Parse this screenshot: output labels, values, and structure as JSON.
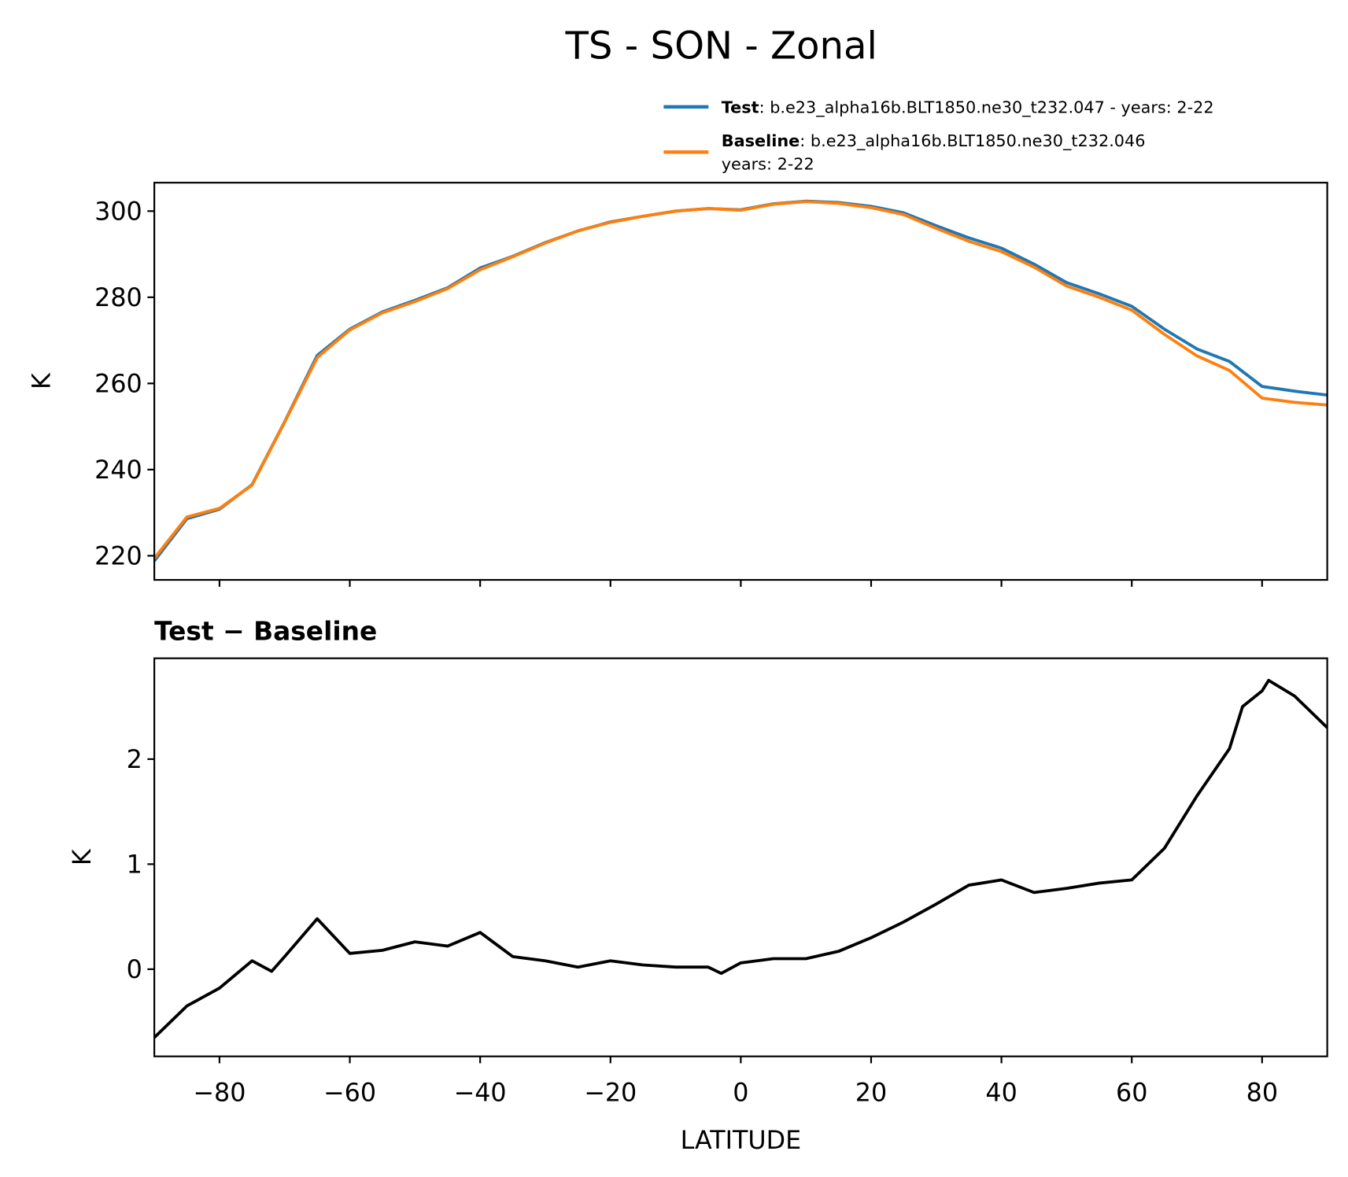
{
  "chart_data": [
    {
      "type": "line",
      "title": "TS - SON - Zonal",
      "y_label": "K",
      "x": [
        -90,
        -85,
        -80,
        -75,
        -70,
        -65,
        -60,
        -55,
        -50,
        -45,
        -40,
        -35,
        -30,
        -25,
        -20,
        -15,
        -10,
        -5,
        0,
        5,
        10,
        15,
        20,
        25,
        30,
        35,
        40,
        45,
        50,
        55,
        60,
        65,
        70,
        75,
        80,
        85,
        90
      ],
      "series": [
        {
          "name": "Test",
          "legend_text": [
            ": b.e23_alpha16b.BLT1850.ne30_t232.047 - years: 2-22"
          ],
          "color": "#1f77b4",
          "values": [
            218.8,
            228.6,
            230.8,
            236.5,
            251.1,
            266.5,
            272.6,
            276.6,
            279.3,
            282.2,
            286.8,
            289.5,
            292.7,
            295.4,
            297.5,
            298.8,
            300,
            300.6,
            300.3,
            301.7,
            302.3,
            302,
            301.1,
            299.6,
            296.6,
            293.8,
            291.4,
            287.7,
            283.4,
            280.8,
            277.9,
            272.6,
            268,
            265.1,
            259.3,
            258.2,
            257.3
          ]
        },
        {
          "name": "Baseline",
          "legend_text": [
            ": b.e23_alpha16b.BLT1850.ne30_t232.046",
            "years: 2-22"
          ],
          "color": "#ff7f0e",
          "values": [
            219.4,
            229,
            231,
            236.4,
            251,
            266,
            272.4,
            276.4,
            279,
            282,
            286.4,
            289.4,
            292.6,
            295.4,
            297.4,
            298.8,
            300,
            300.6,
            300.2,
            301.6,
            302.2,
            301.8,
            300.8,
            299.2,
            296,
            293,
            290.6,
            287,
            282.6,
            280,
            277,
            271.4,
            266.4,
            263,
            256.6,
            255.6,
            255
          ]
        }
      ],
      "xlim": [
        -90,
        90
      ],
      "xticks": [
        -80,
        -60,
        -40,
        -20,
        0,
        20,
        40,
        60,
        80
      ],
      "xticklabels": false,
      "ylim": [
        214.4,
        306.6
      ],
      "yticks": [
        220,
        240,
        260,
        280,
        300
      ]
    },
    {
      "type": "line",
      "title": "Test − Baseline",
      "y_label": "K",
      "x_label": "LATITUDE",
      "x": [
        -90,
        -85,
        -80,
        -75,
        -72,
        -70,
        -65,
        -60,
        -55,
        -50,
        -45,
        -40,
        -35,
        -30,
        -25,
        -20,
        -15,
        -10,
        -5,
        -3,
        0,
        5,
        10,
        15,
        20,
        25,
        30,
        35,
        40,
        45,
        50,
        55,
        60,
        65,
        70,
        75,
        77,
        80,
        81,
        85,
        90
      ],
      "values": [
        -0.65,
        -0.35,
        -0.18,
        0.08,
        -0.02,
        0.12,
        0.48,
        0.15,
        0.18,
        0.26,
        0.22,
        0.35,
        0.12,
        0.08,
        0.02,
        0.08,
        0.04,
        0.02,
        0.02,
        -0.04,
        0.06,
        0.1,
        0.1,
        0.17,
        0.3,
        0.45,
        0.62,
        0.8,
        0.85,
        0.73,
        0.77,
        0.82,
        0.85,
        1.15,
        1.65,
        2.1,
        2.5,
        2.65,
        2.75,
        2.6,
        2.3
      ],
      "color": "#000000",
      "xlim": [
        -90,
        90
      ],
      "xticks": [
        {
          "value": -80,
          "label": "−80"
        },
        {
          "value": -60,
          "label": "−60"
        },
        {
          "value": -40,
          "label": "−40"
        },
        {
          "value": -20,
          "label": "−20"
        },
        0,
        20,
        40,
        60,
        80
      ],
      "ylim": [
        -0.83,
        2.96
      ],
      "yticks": [
        0,
        1,
        2
      ]
    }
  ]
}
